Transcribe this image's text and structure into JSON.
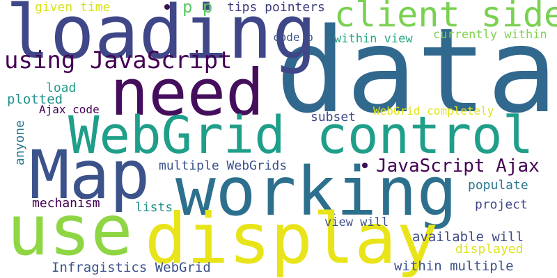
{
  "words": [
    {
      "text": "data",
      "color": "#31688e"
    },
    {
      "text": "loading",
      "color": "#3f4788"
    },
    {
      "text": "need",
      "color": "#440e5c"
    },
    {
      "text": "client side",
      "color": "#7ad151"
    },
    {
      "text": "WebGrid control",
      "color": "#1f9e89"
    },
    {
      "text": "Map",
      "color": "#3b528b"
    },
    {
      "text": "working",
      "color": "#2d708e"
    },
    {
      "text": "use",
      "color": "#8ed643"
    },
    {
      "text": "display",
      "color": "#e8e419"
    },
    {
      "text": "using JavaScript",
      "color": "#440154"
    },
    {
      "text": "JavaScript Ajax",
      "color": "#440154"
    },
    {
      "text": "given time",
      "color": "#d8e219"
    },
    {
      "text": "p p",
      "color": "#5cc863"
    },
    {
      "text": "tips pointers",
      "color": "#3b3b7c"
    },
    {
      "text": "code p",
      "color": "#3b528b"
    },
    {
      "text": "within view",
      "color": "#22a884"
    },
    {
      "text": "currently within",
      "color": "#7fd34e"
    },
    {
      "text": "load",
      "color": "#1f9e89"
    },
    {
      "text": "plotted",
      "color": "#21918c"
    },
    {
      "text": "Ajax code",
      "color": "#440154"
    },
    {
      "text": "WebGrid completely",
      "color": "#e0e41a"
    },
    {
      "text": "subset",
      "color": "#3e4a89"
    },
    {
      "text": "anyone",
      "color": "#2a788e"
    },
    {
      "text": "multiple WebGrids",
      "color": "#3b528b"
    },
    {
      "text": "populate",
      "color": "#2a788e"
    },
    {
      "text": "mechanism",
      "color": "#440154"
    },
    {
      "text": "lists",
      "color": "#21918c"
    },
    {
      "text": "project",
      "color": "#3f4788"
    },
    {
      "text": "view will",
      "color": "#3b528b"
    },
    {
      "text": "available will",
      "color": "#3e4a89"
    },
    {
      "text": "displayed",
      "color": "#dde318"
    },
    {
      "text": "Infragistics WebGrid",
      "color": "#3b528b"
    },
    {
      "text": "within multiple",
      "color": "#3b528b"
    }
  ]
}
